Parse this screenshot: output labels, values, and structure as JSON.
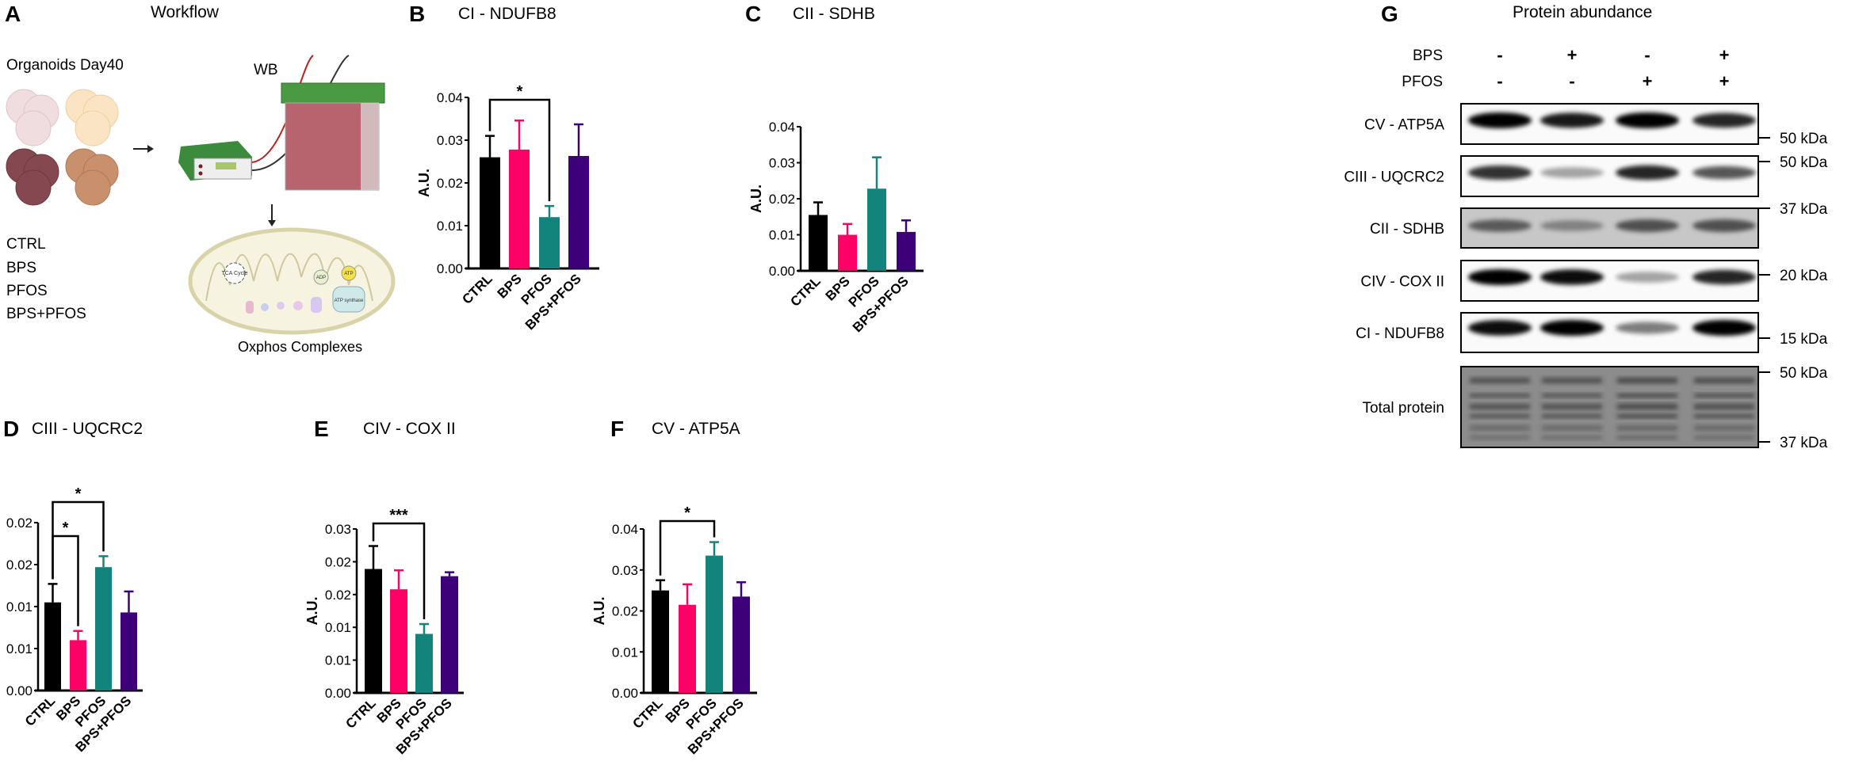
{
  "panel_a": {
    "letter": "A",
    "title": "Workflow",
    "organoids_label": "Organoids Day40",
    "wb_label": "WB",
    "groups": [
      "CTRL",
      "BPS",
      "PFOS",
      "BPS+PFOS"
    ],
    "mito_label": "Oxphos Complexes",
    "mito_small_labels": [
      "TCA Cycle",
      "ADP",
      "ATP",
      "ATP synthase"
    ]
  },
  "colors": {
    "CTRL": "#000000",
    "BPS": "#ff0066",
    "PFOS": "#13847c",
    "BPS+PFOS": "#3d0078"
  },
  "chart_data": [
    {
      "id": "B",
      "letter": "B",
      "type": "bar",
      "title": "CI - NDUFB8",
      "ylabel": "A.U.",
      "xlabel": "",
      "categories": [
        "CTRL",
        "BPS",
        "PFOS",
        "BPS+PFOS"
      ],
      "values": [
        0.026,
        0.0278,
        0.012,
        0.0263
      ],
      "error": [
        0.005,
        0.0068,
        0.0026,
        0.0074
      ],
      "ylim": [
        0,
        0.04
      ],
      "yticks": [
        0,
        0.01,
        0.02,
        0.03,
        0.04
      ],
      "ytick_labels": [
        "0.00",
        "0.01",
        "0.02",
        "0.03",
        "0.04"
      ],
      "significance": [
        {
          "from": "CTRL",
          "to": "PFOS",
          "label": "*"
        }
      ]
    },
    {
      "id": "C",
      "letter": "C",
      "type": "bar",
      "title": "CII - SDHB",
      "ylabel": "A.U.",
      "xlabel": "",
      "categories": [
        "CTRL",
        "BPS",
        "PFOS",
        "BPS+PFOS"
      ],
      "values": [
        0.0155,
        0.01,
        0.0228,
        0.0108
      ],
      "error": [
        0.0035,
        0.003,
        0.0087,
        0.0032
      ],
      "ylim": [
        0,
        0.04
      ],
      "yticks": [
        0,
        0.01,
        0.02,
        0.03,
        0.04
      ],
      "ytick_labels": [
        "0.00",
        "0.01",
        "0.02",
        "0.03",
        "0.04"
      ],
      "significance": []
    },
    {
      "id": "D",
      "letter": "D",
      "type": "bar",
      "title": "CIII - UQCRC2",
      "ylabel": "A.U.",
      "xlabel": "",
      "categories": [
        "CTRL",
        "BPS",
        "PFOS",
        "BPS+PFOS"
      ],
      "values": [
        0.0105,
        0.006,
        0.0147,
        0.0093
      ],
      "error": [
        0.0022,
        0.0011,
        0.0013,
        0.0025
      ],
      "ylim": [
        0,
        0.02
      ],
      "yticks": [
        0,
        0.005,
        0.01,
        0.015,
        0.02
      ],
      "ytick_labels": [
        "0.00",
        "0.01",
        "0.01",
        "0.02",
        "0.02"
      ],
      "significance": [
        {
          "from": "CTRL",
          "to": "BPS",
          "label": "*"
        },
        {
          "from": "CTRL",
          "to": "PFOS",
          "label": "*"
        }
      ]
    },
    {
      "id": "E",
      "letter": "E",
      "type": "bar",
      "title": "CIV - COX II",
      "ylabel": "A.U.",
      "xlabel": "",
      "categories": [
        "CTRL",
        "BPS",
        "PFOS",
        "BPS+PFOS"
      ],
      "values": [
        0.0189,
        0.0158,
        0.009,
        0.0178
      ],
      "error": [
        0.0035,
        0.0029,
        0.0015,
        0.0006
      ],
      "ylim": [
        0,
        0.025
      ],
      "yticks": [
        0,
        0.005,
        0.01,
        0.015,
        0.02,
        0.025
      ],
      "ytick_labels": [
        "0.00",
        "0.01",
        "0.01",
        "0.02",
        "0.02",
        "0.03"
      ],
      "significance": [
        {
          "from": "CTRL",
          "to": "PFOS",
          "label": "***"
        }
      ]
    },
    {
      "id": "F",
      "letter": "F",
      "type": "bar",
      "title": "CV -  ATP5A",
      "ylabel": "A.U.",
      "xlabel": "",
      "categories": [
        "CTRL",
        "BPS",
        "PFOS",
        "BPS+PFOS"
      ],
      "values": [
        0.025,
        0.0215,
        0.0335,
        0.0235
      ],
      "error": [
        0.0025,
        0.005,
        0.0033,
        0.0035
      ],
      "ylim": [
        0,
        0.04
      ],
      "yticks": [
        0,
        0.01,
        0.02,
        0.03,
        0.04
      ],
      "ytick_labels": [
        "0.00",
        "0.01",
        "0.02",
        "0.03",
        "0.04"
      ],
      "significance": [
        {
          "from": "CTRL",
          "to": "PFOS",
          "label": "*"
        }
      ]
    }
  ],
  "panel_g": {
    "letter": "G",
    "title": "Protein abundance",
    "treatment_rows": [
      {
        "label": "BPS",
        "signs": [
          "-",
          "+",
          "-",
          "+"
        ]
      },
      {
        "label": "PFOS",
        "signs": [
          "-",
          "-",
          "+",
          "+"
        ]
      }
    ],
    "blots": [
      {
        "label": "CV -  ATP5A",
        "band_intensity": [
          1.0,
          0.9,
          1.0,
          0.85
        ],
        "background": 0.02
      },
      {
        "label": "CIII - UQCRC2",
        "band_intensity": [
          0.8,
          0.35,
          0.85,
          0.65
        ],
        "background": 0.02
      },
      {
        "label": "CII - SDHB",
        "band_intensity": [
          0.55,
          0.35,
          0.6,
          0.6
        ],
        "background": 0.22
      },
      {
        "label": "CIV - COX II",
        "band_intensity": [
          1.0,
          0.95,
          0.35,
          0.85
        ],
        "background": 0.02
      },
      {
        "label": "CI - NDUFB8",
        "band_intensity": [
          0.95,
          1.0,
          0.5,
          1.0
        ],
        "background": 0.02
      },
      {
        "label": "Total protein",
        "band_intensity": [
          0.7,
          0.7,
          0.8,
          0.75
        ],
        "background": 0.45
      }
    ],
    "markers": [
      "50 kDa",
      "50 kDa",
      "37 kDa",
      "20 kDa",
      "15 kDa",
      "50 kDa",
      "37 kDa"
    ]
  }
}
